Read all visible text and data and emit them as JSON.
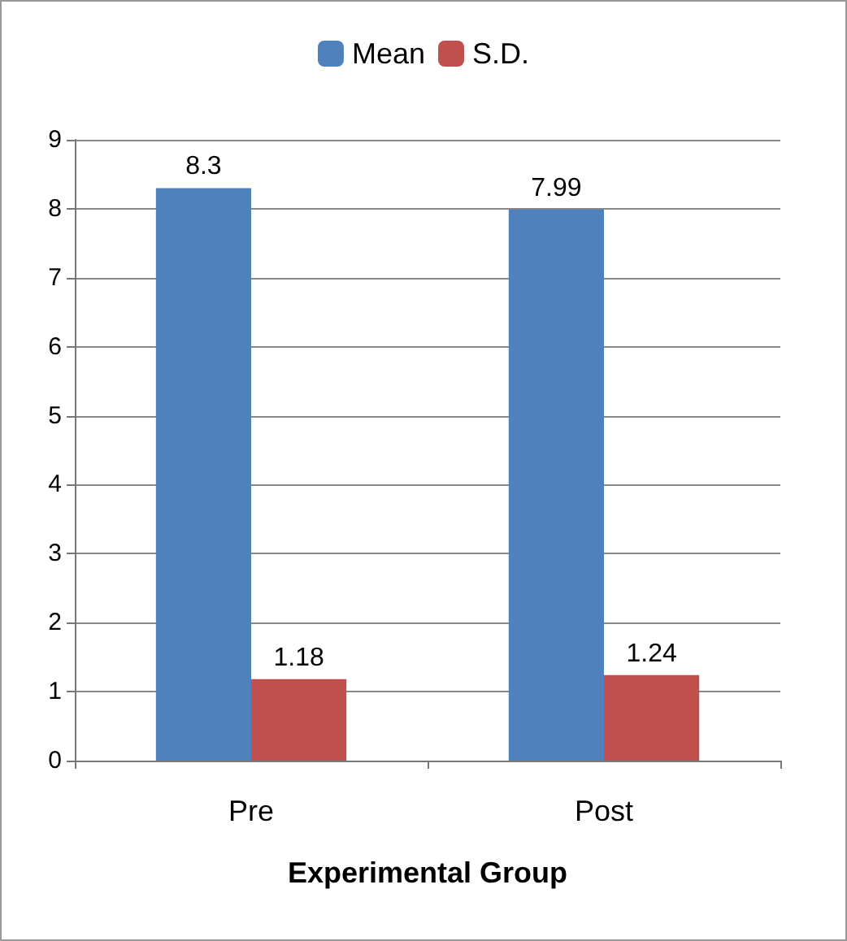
{
  "chart_data": {
    "type": "bar",
    "xlabel": "Experimental Group",
    "categories": [
      "Pre",
      "Post"
    ],
    "series": [
      {
        "name": "Mean",
        "color": "#4f81bd",
        "values": [
          8.3,
          7.99
        ]
      },
      {
        "name": "S.D.",
        "color": "#c0504d",
        "values": [
          1.18,
          1.24
        ]
      }
    ],
    "ylim": [
      0,
      9
    ],
    "yticks": [
      0,
      1,
      2,
      3,
      4,
      5,
      6,
      7,
      8,
      9
    ],
    "grid": "y",
    "legend": "top",
    "data_labels": true
  }
}
